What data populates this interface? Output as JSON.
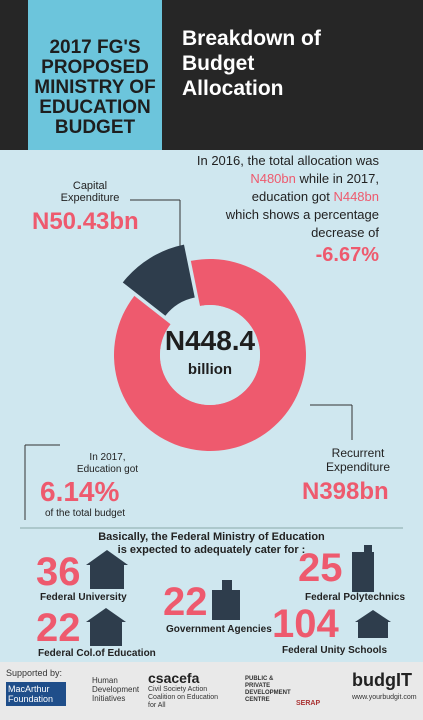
{
  "header": {
    "title": "2017 FG'S PROPOSED MINISTRY OF EDUCATION BUDGET",
    "subtitle": "Breakdown of Budget Allocation"
  },
  "intro": {
    "parts": [
      "In 2016, the total allocation was",
      "N480bn",
      "while in 2017,",
      "education got",
      "N448bn",
      "which shows a percentage",
      "decrease of",
      "-6.67%"
    ]
  },
  "chart_data": {
    "type": "pie",
    "categories": [
      "Capital Expenditure",
      "Recurrent Expenditure"
    ],
    "values": [
      50.43,
      398
    ],
    "value_labels": [
      "N50.43bn",
      "N398bn"
    ],
    "colors": [
      "#2e3d4c",
      "#ee5a6e"
    ],
    "center_value": "N448.4",
    "center_unit": "billion"
  },
  "share": {
    "lines": [
      "In 2017,",
      "Education got"
    ],
    "value": "6.14%",
    "note": "of the total budget"
  },
  "institutions": {
    "intro": [
      "Basically, the Federal Ministry of Education",
      "is expected to adequately cater for :"
    ],
    "items": [
      {
        "count": 36,
        "label": "Federal University"
      },
      {
        "count": 22,
        "label": "Government Agencies"
      },
      {
        "count": 25,
        "label": "Federal Polytechnics"
      },
      {
        "count": 22,
        "label": "Federal Col.of Education"
      },
      {
        "count": 104,
        "label": "Federal Unity Schools"
      }
    ]
  },
  "footer": {
    "supported_by": "Supported by:",
    "sponsors": [
      "MacArthur Foundation",
      "Human Development Initiatives",
      "csacefa",
      "Civil Society Action Coalition on Education for All",
      "PUBLIC & PRIVATE DEVELOPMENT CENTRE",
      "SERAP",
      "budgIT",
      "www.yourbudgit.com"
    ]
  }
}
